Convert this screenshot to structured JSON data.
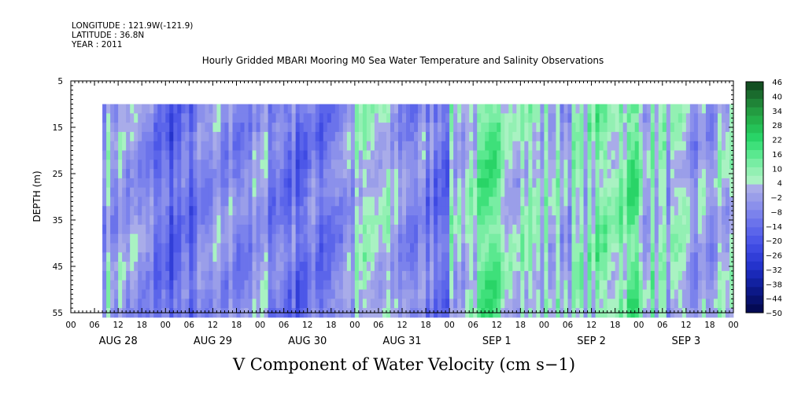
{
  "header": {
    "longitude": "LONGITUDE : 121.9W(-121.9)",
    "latitude": "LATITUDE : 36.8N",
    "year": "YEAR : 2011"
  },
  "chart_data": {
    "type": "heatmap",
    "title": "Hourly Gridded MBARI Mooring M0 Sea Water Temperature and Salinity Observations",
    "xlabel": "V Component of Water Velocity (cm s−1)",
    "ylabel": "DEPTH (m)",
    "y_ticks": [
      5,
      15,
      25,
      35,
      45,
      55
    ],
    "ylim": [
      5,
      55
    ],
    "y_inverted": true,
    "x_hour_ticks": [
      "00",
      "06",
      "12",
      "18",
      "00",
      "06",
      "12",
      "18",
      "00",
      "06",
      "12",
      "18",
      "00",
      "06",
      "12",
      "18",
      "00",
      "06",
      "12",
      "18",
      "00",
      "06",
      "12",
      "18",
      "00",
      "06",
      "12",
      "18",
      "00"
    ],
    "x_day_labels": [
      "AUG 28",
      "AUG 29",
      "AUG 30",
      "AUG 31",
      "SEP  1",
      "SEP  2",
      "SEP  3"
    ],
    "data_extent": {
      "start_hour": 8,
      "end_hour": 168,
      "top_depth": 10,
      "bottom_depth": 55
    },
    "colorbar": {
      "tick_labels": [
        "46",
        "40",
        "34",
        "28",
        "22",
        "16",
        "10",
        "4",
        "−2",
        "−8",
        "−14",
        "−20",
        "−26",
        "−32",
        "−38",
        "−44",
        "−50"
      ],
      "range": [
        -50,
        52
      ],
      "step": 3,
      "colors_high_to_low": [
        "#124f21",
        "#1a6b2d",
        "#1f8437",
        "#239c41",
        "#24b04a",
        "#25c257",
        "#29d467",
        "#3ee07a",
        "#5ae88f",
        "#78eda3",
        "#93f0b3",
        "#a9f2c2",
        "#a9ace9",
        "#9a9ee9",
        "#8b90eb",
        "#7b82ec",
        "#6b73eb",
        "#5b65ea",
        "#4c57e8",
        "#3e4ae2",
        "#313ed8",
        "#2433cc",
        "#1a29b8",
        "#1221a0",
        "#0c1887",
        "#08116e",
        "#040a55"
      ]
    },
    "field_mean_by_day": [
      {
        "day": "AUG 28",
        "mean": -4
      },
      {
        "day": "AUG 29",
        "mean": -8
      },
      {
        "day": "AUG 30",
        "mean": -4
      },
      {
        "day": "AUG 31",
        "mean": -1
      },
      {
        "day": "SEP  1",
        "mean": 8
      },
      {
        "day": "SEP  2",
        "mean": 11
      },
      {
        "day": "SEP  3",
        "mean": 5
      }
    ]
  }
}
